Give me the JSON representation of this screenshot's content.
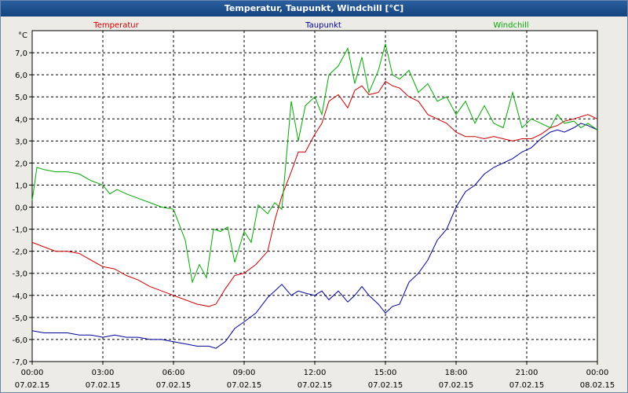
{
  "window": {
    "title": "Temperatur, Taupunkt, Windchill [°C]"
  },
  "chart_data": {
    "type": "line",
    "title": "Temperatur, Taupunkt, Windchill [°C]",
    "ylabel": "°C",
    "ylim": [
      -7,
      8
    ],
    "yticks": [
      "7,0",
      "6,0",
      "5,0",
      "4,0",
      "3,0",
      "2,0",
      "1,0",
      "0,0",
      "-1,0",
      "-2,0",
      "-3,0",
      "-4,0",
      "-5,0",
      "-6,0",
      "-7,0"
    ],
    "yticks_values": [
      7,
      6,
      5,
      4,
      3,
      2,
      1,
      0,
      -1,
      -2,
      -3,
      -4,
      -5,
      -6,
      -7
    ],
    "xlim": [
      0,
      24
    ],
    "xticks": [
      {
        "value": 0,
        "time": "00:00",
        "date": "07.02.15"
      },
      {
        "value": 3,
        "time": "03:00",
        "date": "07.02.15"
      },
      {
        "value": 6,
        "time": "06:00",
        "date": "07.02.15"
      },
      {
        "value": 9,
        "time": "09:00",
        "date": "07.02.15"
      },
      {
        "value": 12,
        "time": "12:00",
        "date": "07.02.15"
      },
      {
        "value": 15,
        "time": "15:00",
        "date": "07.02.15"
      },
      {
        "value": 18,
        "time": "18:00",
        "date": "07.02.15"
      },
      {
        "value": 21,
        "time": "21:00",
        "date": "07.02.15"
      },
      {
        "value": 24,
        "time": "00:00",
        "date": "08.02.15"
      }
    ],
    "grid": true,
    "legend_position": "top",
    "series": [
      {
        "name": "Temperatur",
        "color": "#cc0000",
        "points": [
          [
            0,
            -1.6
          ],
          [
            0.5,
            -1.8
          ],
          [
            1,
            -2.0
          ],
          [
            1.5,
            -2.0
          ],
          [
            2,
            -2.1
          ],
          [
            2.5,
            -2.4
          ],
          [
            3,
            -2.7
          ],
          [
            3.5,
            -2.8
          ],
          [
            4,
            -3.1
          ],
          [
            4.5,
            -3.3
          ],
          [
            5,
            -3.6
          ],
          [
            5.5,
            -3.8
          ],
          [
            6,
            -4.0
          ],
          [
            6.5,
            -4.2
          ],
          [
            7,
            -4.4
          ],
          [
            7.5,
            -4.5
          ],
          [
            7.8,
            -4.4
          ],
          [
            8.2,
            -3.7
          ],
          [
            8.6,
            -3.1
          ],
          [
            9,
            -3.0
          ],
          [
            9.5,
            -2.6
          ],
          [
            10,
            -2.0
          ],
          [
            10.3,
            -0.6
          ],
          [
            10.6,
            0.5
          ],
          [
            11,
            1.6
          ],
          [
            11.3,
            2.5
          ],
          [
            11.6,
            2.5
          ],
          [
            12,
            3.3
          ],
          [
            12.3,
            3.8
          ],
          [
            12.6,
            4.8
          ],
          [
            13,
            5.1
          ],
          [
            13.4,
            4.5
          ],
          [
            13.7,
            5.3
          ],
          [
            14,
            5.5
          ],
          [
            14.3,
            5.1
          ],
          [
            14.7,
            5.2
          ],
          [
            15,
            5.7
          ],
          [
            15.3,
            5.5
          ],
          [
            15.6,
            5.4
          ],
          [
            16,
            5.0
          ],
          [
            16.4,
            4.8
          ],
          [
            16.8,
            4.2
          ],
          [
            17.2,
            4.0
          ],
          [
            17.6,
            3.8
          ],
          [
            18,
            3.4
          ],
          [
            18.4,
            3.2
          ],
          [
            18.8,
            3.2
          ],
          [
            19.2,
            3.1
          ],
          [
            19.6,
            3.2
          ],
          [
            20,
            3.1
          ],
          [
            20.4,
            3.0
          ],
          [
            20.8,
            3.1
          ],
          [
            21.2,
            3.1
          ],
          [
            21.6,
            3.3
          ],
          [
            22,
            3.6
          ],
          [
            22.3,
            3.7
          ],
          [
            22.6,
            3.9
          ],
          [
            23,
            4.0
          ],
          [
            23.3,
            4.1
          ],
          [
            23.6,
            4.2
          ],
          [
            24,
            4.0
          ]
        ]
      },
      {
        "name": "Taupunkt",
        "color": "#000099",
        "points": [
          [
            0,
            -5.6
          ],
          [
            0.5,
            -5.7
          ],
          [
            1,
            -5.7
          ],
          [
            1.5,
            -5.7
          ],
          [
            2,
            -5.8
          ],
          [
            2.5,
            -5.8
          ],
          [
            3,
            -5.9
          ],
          [
            3.5,
            -5.8
          ],
          [
            4,
            -5.9
          ],
          [
            4.5,
            -5.9
          ],
          [
            5,
            -6.0
          ],
          [
            5.5,
            -6.0
          ],
          [
            6,
            -6.1
          ],
          [
            6.5,
            -6.2
          ],
          [
            7,
            -6.3
          ],
          [
            7.5,
            -6.3
          ],
          [
            7.8,
            -6.4
          ],
          [
            8.2,
            -6.1
          ],
          [
            8.6,
            -5.5
          ],
          [
            9,
            -5.2
          ],
          [
            9.5,
            -4.8
          ],
          [
            10,
            -4.1
          ],
          [
            10.3,
            -3.8
          ],
          [
            10.6,
            -3.5
          ],
          [
            11,
            -4.0
          ],
          [
            11.3,
            -3.8
          ],
          [
            11.6,
            -3.9
          ],
          [
            12,
            -4.0
          ],
          [
            12.3,
            -3.8
          ],
          [
            12.6,
            -4.2
          ],
          [
            13,
            -3.8
          ],
          [
            13.4,
            -4.3
          ],
          [
            13.7,
            -4.0
          ],
          [
            14,
            -3.6
          ],
          [
            14.3,
            -4.0
          ],
          [
            14.7,
            -4.4
          ],
          [
            15,
            -4.8
          ],
          [
            15.3,
            -4.5
          ],
          [
            15.6,
            -4.4
          ],
          [
            16,
            -3.4
          ],
          [
            16.4,
            -3.0
          ],
          [
            16.8,
            -2.4
          ],
          [
            17.2,
            -1.5
          ],
          [
            17.6,
            -1.0
          ],
          [
            18,
            0.0
          ],
          [
            18.4,
            0.7
          ],
          [
            18.8,
            1.0
          ],
          [
            19.2,
            1.5
          ],
          [
            19.6,
            1.8
          ],
          [
            20,
            2.0
          ],
          [
            20.4,
            2.2
          ],
          [
            20.8,
            2.5
          ],
          [
            21.2,
            2.7
          ],
          [
            21.6,
            3.1
          ],
          [
            22,
            3.4
          ],
          [
            22.3,
            3.5
          ],
          [
            22.6,
            3.4
          ],
          [
            23,
            3.6
          ],
          [
            23.3,
            3.8
          ],
          [
            23.6,
            3.7
          ],
          [
            24,
            3.5
          ]
        ]
      },
      {
        "name": "Windchill",
        "color": "#00aa00",
        "points": [
          [
            0,
            0.3
          ],
          [
            0.2,
            1.8
          ],
          [
            0.5,
            1.7
          ],
          [
            1,
            1.6
          ],
          [
            1.5,
            1.6
          ],
          [
            2,
            1.5
          ],
          [
            2.5,
            1.2
          ],
          [
            3,
            1.0
          ],
          [
            3.3,
            0.6
          ],
          [
            3.6,
            0.8
          ],
          [
            4,
            0.6
          ],
          [
            4.5,
            0.4
          ],
          [
            5,
            0.2
          ],
          [
            5.5,
            0.0
          ],
          [
            6,
            -0.1
          ],
          [
            6.5,
            -1.5
          ],
          [
            6.8,
            -3.4
          ],
          [
            7.1,
            -2.6
          ],
          [
            7.4,
            -3.2
          ],
          [
            7.7,
            -1.0
          ],
          [
            8,
            -1.1
          ],
          [
            8.3,
            -0.9
          ],
          [
            8.6,
            -2.5
          ],
          [
            9,
            -1.1
          ],
          [
            9.3,
            -1.6
          ],
          [
            9.6,
            0.1
          ],
          [
            10,
            -0.3
          ],
          [
            10.3,
            0.2
          ],
          [
            10.6,
            -0.1
          ],
          [
            11,
            4.8
          ],
          [
            11.3,
            3.0
          ],
          [
            11.6,
            4.6
          ],
          [
            12,
            5.0
          ],
          [
            12.3,
            4.2
          ],
          [
            12.6,
            6.0
          ],
          [
            13,
            6.4
          ],
          [
            13.4,
            7.2
          ],
          [
            13.7,
            5.6
          ],
          [
            14,
            6.8
          ],
          [
            14.3,
            5.2
          ],
          [
            14.7,
            6.2
          ],
          [
            15,
            7.4
          ],
          [
            15.3,
            6.0
          ],
          [
            15.6,
            5.8
          ],
          [
            16,
            6.2
          ],
          [
            16.4,
            5.2
          ],
          [
            16.8,
            5.6
          ],
          [
            17.2,
            4.8
          ],
          [
            17.6,
            5.0
          ],
          [
            18,
            4.2
          ],
          [
            18.4,
            4.8
          ],
          [
            18.8,
            3.8
          ],
          [
            19.2,
            4.6
          ],
          [
            19.6,
            3.8
          ],
          [
            20,
            3.6
          ],
          [
            20.4,
            5.2
          ],
          [
            20.8,
            3.6
          ],
          [
            21.2,
            4.0
          ],
          [
            21.6,
            3.8
          ],
          [
            22,
            3.6
          ],
          [
            22.3,
            4.2
          ],
          [
            22.6,
            3.8
          ],
          [
            23,
            3.9
          ],
          [
            23.3,
            3.6
          ],
          [
            23.6,
            3.8
          ],
          [
            24,
            3.5
          ]
        ]
      }
    ]
  }
}
